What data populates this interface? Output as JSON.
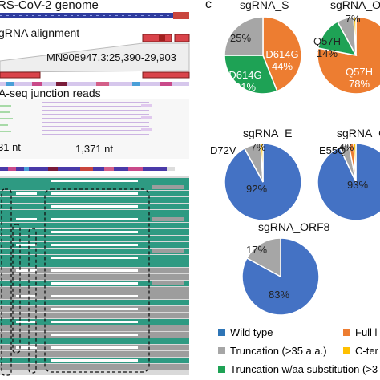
{
  "panel_letter": "c",
  "left": {
    "genome_title": "RS-CoV-2 genome",
    "alignment_title": "gRNA alignment",
    "coordinate": "MN908947.3:25,390-29,903",
    "junction_title": "A-seq junction reads",
    "left_nt": "31 nt",
    "right_nt": "1,371 nt"
  },
  "colors": {
    "wild_type": "#4472c4",
    "truncation": "#a6a6a6",
    "d614g": "#ed7d31",
    "truncation_sub": "#1ea255",
    "full_length": "#ed7d31",
    "c_term": "#ffc000",
    "teal": "#2e9a82",
    "read_gray": "#9d9d9d"
  },
  "chart_data": [
    {
      "type": "pie",
      "title": "sgRNA_S",
      "slices": [
        {
          "label": "D614G",
          "value": 44
        },
        {
          "label": "D614G",
          "value": 31
        },
        {
          "label": "",
          "value": 25
        }
      ]
    },
    {
      "type": "pie",
      "title": "sgRNA_O",
      "slices": [
        {
          "label": "Q57H",
          "value": 78
        },
        {
          "label": "Q57H",
          "value": 14
        },
        {
          "label": "",
          "value": 7
        }
      ]
    },
    {
      "type": "pie",
      "title": "sgRNA_E",
      "slices": [
        {
          "label": "",
          "value": 92
        },
        {
          "label": "",
          "value": 7
        }
      ],
      "annotation": "D72V"
    },
    {
      "type": "pie",
      "title": "sgRNA_O",
      "slices": [
        {
          "label": "",
          "value": 93
        },
        {
          "label": "",
          "value": 4
        }
      ],
      "annotation": "E55Q"
    },
    {
      "type": "pie",
      "title": "sgRNA_ORF8",
      "slices": [
        {
          "label": "",
          "value": 83
        },
        {
          "label": "",
          "value": 17
        }
      ]
    }
  ],
  "pie_labels": {
    "s_orange": "D614G\n44%",
    "s_green": "D614G\n31%",
    "s_gray": "25%",
    "o_orange": "Q57H\n78%",
    "o_green": "Q57H\n14%",
    "o_gray": "7%",
    "e_blue": "92%",
    "e_gray": "7%",
    "o2_blue": "93%",
    "o2_gray": "4%",
    "orf8_blue": "83%",
    "orf8_gray": "17%"
  },
  "legend": {
    "wild_type": "Wild type",
    "truncation": "Truncation (>35 a.a.)",
    "truncation_sub": "Truncation w/aa substitution (>3",
    "full_length": "Full l",
    "c_term": "C-ter"
  }
}
